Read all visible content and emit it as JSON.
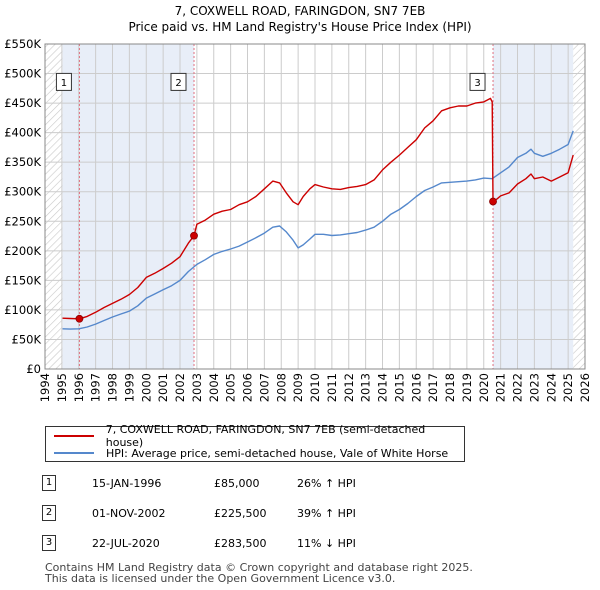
{
  "title_line1": "7, COXWELL ROAD, FARINGDON, SN7 7EB",
  "title_line2": "Price paid vs. HM Land Registry's House Price Index (HPI)",
  "colors": {
    "property": "#cc0000",
    "hpi": "#5588cc",
    "shade": "#e8eef8",
    "marker_line": "#e07080",
    "grid": "#cccccc"
  },
  "legend": {
    "property_label": "7, COXWELL ROAD, FARINGDON, SN7 7EB (semi-detached house)",
    "hpi_label": "HPI: Average price, semi-detached house, Vale of White Horse"
  },
  "transactions": [
    {
      "num": "1",
      "date": "15-JAN-1996",
      "price": "£85,000",
      "hpi": "26% ↑ HPI"
    },
    {
      "num": "2",
      "date": "01-NOV-2002",
      "price": "£225,500",
      "hpi": "39% ↑ HPI"
    },
    {
      "num": "3",
      "date": "22-JUL-2020",
      "price": "£283,500",
      "hpi": "11% ↓ HPI"
    }
  ],
  "footer_line1": "Contains HM Land Registry data © Crown copyright and database right 2025.",
  "footer_line2": "This data is licensed under the Open Government Licence v3.0.",
  "chart_data": {
    "type": "line",
    "title": "Price paid vs. HM Land Registry's House Price Index (HPI)",
    "xlim": [
      1994,
      2026
    ],
    "ylim": [
      0,
      550000
    ],
    "x_ticks": [
      1994,
      1995,
      1996,
      1997,
      1998,
      1999,
      2000,
      2001,
      2002,
      2003,
      2004,
      2005,
      2006,
      2007,
      2008,
      2009,
      2010,
      2011,
      2012,
      2013,
      2014,
      2015,
      2016,
      2017,
      2018,
      2019,
      2020,
      2021,
      2022,
      2023,
      2024,
      2025,
      2026
    ],
    "y_ticks": [
      {
        "value": 0,
        "label": "£0"
      },
      {
        "value": 50000,
        "label": "£50K"
      },
      {
        "value": 100000,
        "label": "£100K"
      },
      {
        "value": 150000,
        "label": "£150K"
      },
      {
        "value": 200000,
        "label": "£200K"
      },
      {
        "value": 250000,
        "label": "£250K"
      },
      {
        "value": 300000,
        "label": "£300K"
      },
      {
        "value": 350000,
        "label": "£350K"
      },
      {
        "value": 400000,
        "label": "£400K"
      },
      {
        "value": 450000,
        "label": "£450K"
      },
      {
        "value": 500000,
        "label": "£500K"
      },
      {
        "value": 550000,
        "label": "£550K"
      }
    ],
    "grid": true,
    "shaded_ranges": [
      [
        1995.04,
        2002.83
      ],
      [
        2020.55,
        2025.3
      ]
    ],
    "hatched_ranges": [
      [
        1994,
        1995.04
      ],
      [
        2025.3,
        2026
      ]
    ],
    "sales": [
      {
        "label": "1",
        "x": 1996.04,
        "y": 85000,
        "box_y": 485000
      },
      {
        "label": "2",
        "x": 2002.83,
        "y": 225500,
        "box_y": 485000
      },
      {
        "label": "3",
        "x": 2020.55,
        "y": 283500,
        "box_y": 485000
      }
    ],
    "series": [
      {
        "name": "7, COXWELL ROAD, FARINGDON, SN7 7EB (semi-detached house)",
        "color": "#cc0000",
        "x": [
          1995.04,
          1995.5,
          1996.04,
          1996.5,
          1997,
          1997.5,
          1998,
          1998.5,
          1999,
          1999.5,
          2000,
          2000.5,
          2001,
          2001.5,
          2002,
          2002.5,
          2002.83,
          2003,
          2003.5,
          2004,
          2004.5,
          2005,
          2005.5,
          2006,
          2006.5,
          2007,
          2007.5,
          2007.9,
          2008.3,
          2008.7,
          2009,
          2009.3,
          2009.7,
          2010,
          2010.5,
          2011,
          2011.5,
          2012,
          2012.5,
          2013,
          2013.5,
          2014,
          2014.5,
          2015,
          2015.5,
          2016,
          2016.5,
          2017,
          2017.5,
          2018,
          2018.5,
          2019,
          2019.5,
          2020,
          2020.4,
          2020.5,
          2020.55,
          2020.8,
          2021,
          2021.5,
          2022,
          2022.5,
          2022.8,
          2023,
          2023.5,
          2024,
          2024.5,
          2025,
          2025.3
        ],
        "y": [
          86000,
          85500,
          85000,
          89000,
          96000,
          104000,
          111000,
          118000,
          126000,
          138000,
          155000,
          162000,
          170000,
          179000,
          190000,
          213000,
          225500,
          245000,
          252000,
          262000,
          267000,
          270000,
          278000,
          283000,
          292000,
          305000,
          318000,
          315000,
          298000,
          283000,
          278000,
          292000,
          305000,
          312000,
          308000,
          305000,
          304000,
          307000,
          309000,
          312000,
          320000,
          337000,
          350000,
          362000,
          375000,
          388000,
          408000,
          420000,
          437000,
          442000,
          445000,
          445000,
          450000,
          452000,
          458000,
          452000,
          283500,
          288000,
          293000,
          298000,
          313000,
          322000,
          330000,
          322000,
          325000,
          318000,
          325000,
          332000,
          362000
        ]
      },
      {
        "name": "HPI: Average price, semi-detached house, Vale of White Horse",
        "color": "#5588cc",
        "x": [
          1995.04,
          1995.5,
          1996,
          1996.5,
          1997,
          1997.5,
          1998,
          1998.5,
          1999,
          1999.5,
          2000,
          2000.5,
          2001,
          2001.5,
          2002,
          2002.5,
          2003,
          2003.5,
          2004,
          2004.5,
          2005,
          2005.5,
          2006,
          2006.5,
          2007,
          2007.5,
          2007.9,
          2008.3,
          2008.7,
          2009,
          2009.3,
          2009.7,
          2010,
          2010.5,
          2011,
          2011.5,
          2012,
          2012.5,
          2013,
          2013.5,
          2014,
          2014.5,
          2015,
          2015.5,
          2016,
          2016.5,
          2017,
          2017.5,
          2018,
          2018.5,
          2019,
          2019.5,
          2020,
          2020.5,
          2021,
          2021.5,
          2022,
          2022.5,
          2022.8,
          2023,
          2023.5,
          2024,
          2024.5,
          2025,
          2025.3
        ],
        "y": [
          68000,
          67500,
          68000,
          71000,
          76000,
          82000,
          88000,
          93000,
          98000,
          107000,
          120000,
          127000,
          134000,
          141000,
          150000,
          165000,
          177000,
          185000,
          194000,
          199000,
          203000,
          208000,
          215000,
          222000,
          230000,
          240000,
          242000,
          232000,
          218000,
          205000,
          210000,
          220000,
          228000,
          228000,
          226000,
          227000,
          229000,
          231000,
          235000,
          240000,
          250000,
          262000,
          270000,
          280000,
          292000,
          302000,
          308000,
          315000,
          316000,
          317000,
          318000,
          320000,
          323000,
          322000,
          332000,
          342000,
          358000,
          365000,
          372000,
          365000,
          360000,
          365000,
          372000,
          380000,
          403000
        ]
      }
    ]
  }
}
